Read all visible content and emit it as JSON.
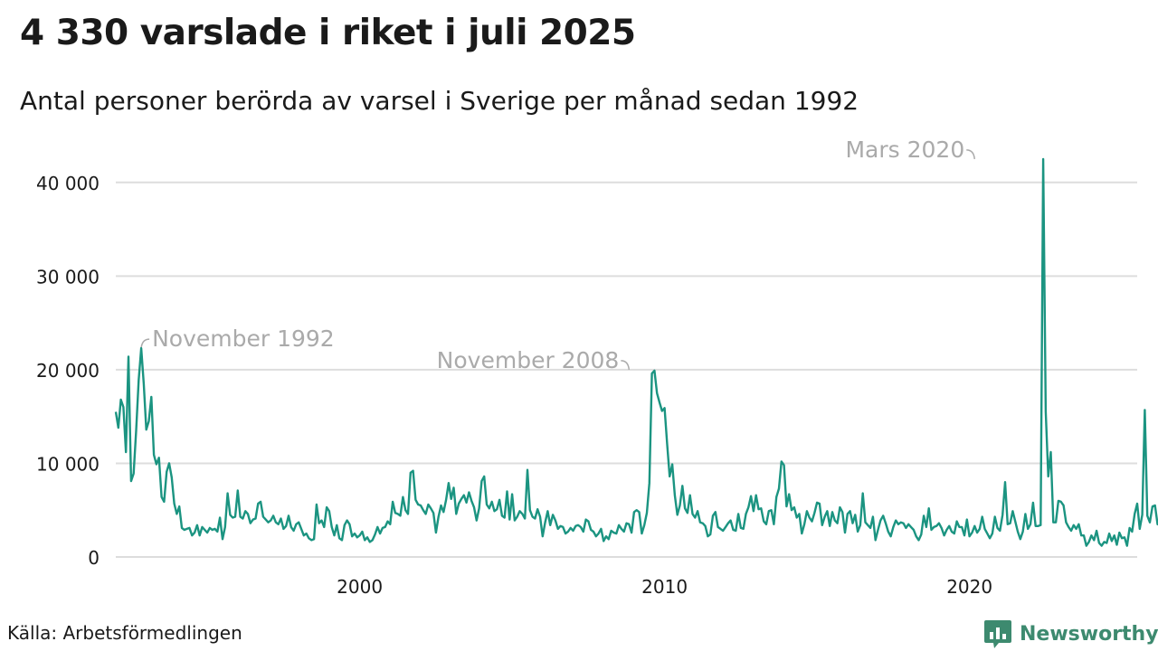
{
  "header": {
    "title": "4 330 varslade i riket i juli 2025",
    "subtitle": "Antal personer berörda av varsel i Sverige per månad sedan 1992"
  },
  "footer": {
    "source": "Källa: Arbetsförmedlingen",
    "brand": "Newsworthy"
  },
  "colors": {
    "line": "#1b9481",
    "grid": "#dddddd",
    "annotation": "#aaaaaa",
    "brand": "#3d8a6f"
  },
  "chart_data": {
    "type": "line",
    "title": "4 330 varslade i riket i juli 2025",
    "subtitle": "Antal personer berörda av varsel i Sverige per månad sedan 1992",
    "x_start": "1992-01",
    "x_end": "2025-07",
    "xlim": [
      "1992-01",
      "2025-07"
    ],
    "ylim": [
      0,
      45000
    ],
    "yticks": [
      {
        "value": 0,
        "label": "0"
      },
      {
        "value": 10000,
        "label": "10 000"
      },
      {
        "value": 20000,
        "label": "20 000"
      },
      {
        "value": 30000,
        "label": "30 000"
      },
      {
        "value": 40000,
        "label": "40 000"
      }
    ],
    "xticks": [
      {
        "value": "2000-01",
        "label": "2000"
      },
      {
        "value": "2010-01",
        "label": "2010"
      },
      {
        "value": "2020-01",
        "label": "2020"
      }
    ],
    "grid": true,
    "annotations": [
      {
        "label": "November 1992",
        "x": "1992-11",
        "y": 22300,
        "side": "right"
      },
      {
        "label": "November 2008",
        "x": "2008-11",
        "y": 20000,
        "side": "left"
      },
      {
        "label": "Mars 2020",
        "x": "2020-03",
        "y": 42500,
        "side": "left"
      }
    ],
    "series": [
      {
        "values": [
          15500,
          13800,
          16800,
          16000,
          11200,
          21400,
          8100,
          8900,
          13500,
          18900,
          22300,
          18500,
          13600,
          14500,
          17100,
          10900,
          9900,
          10600,
          6400,
          5900,
          9100,
          10000,
          8500,
          5700,
          4600,
          5400,
          3100,
          2900,
          3000,
          3100,
          2300,
          2600,
          3400,
          2300,
          3200,
          2900,
          2600,
          3100,
          2900,
          3000,
          2700,
          4200,
          1900,
          3200,
          6800,
          4500,
          4200,
          4300,
          7100,
          4300,
          4100,
          4900,
          4600,
          3600,
          4000,
          4100,
          5700,
          5900,
          4300,
          4000,
          3700,
          3900,
          4400,
          3700,
          3500,
          4100,
          3000,
          3300,
          4400,
          3200,
          2800,
          3500,
          3700,
          3000,
          2300,
          2500,
          2000,
          1800,
          1900,
          5600,
          3600,
          3900,
          3200,
          5300,
          4900,
          3200,
          2300,
          3400,
          2000,
          1800,
          3400,
          3900,
          3500,
          2200,
          2500,
          2100,
          2300,
          2700,
          1800,
          2100,
          1600,
          1800,
          2400,
          3200,
          2500,
          3100,
          3200,
          3800,
          3500,
          5900,
          4700,
          4600,
          4400,
          6400,
          5000,
          4600,
          9000,
          9200,
          6100,
          5600,
          5500,
          5000,
          4600,
          5600,
          5200,
          4700,
          2600,
          4300,
          5500,
          4800,
          6100,
          7900,
          6200,
          7400,
          4600,
          5700,
          6200,
          6600,
          5800,
          6900,
          6000,
          5300,
          3900,
          5200,
          8100,
          8600,
          5600,
          5200,
          5900,
          4900,
          5100,
          6100,
          4400,
          4200,
          7000,
          4000,
          6700,
          3900,
          4300,
          4900,
          4600,
          4100,
          9300,
          5000,
          4300,
          4100,
          5100,
          4300,
          2200,
          3700,
          4900,
          3400,
          4500,
          3900,
          3000,
          3300,
          3200,
          2500,
          2700,
          3100,
          2800,
          3300,
          3400,
          3200,
          2700,
          4000,
          3800,
          2900,
          2700,
          2200,
          2500,
          3000,
          1700,
          2200,
          1900,
          2800,
          2600,
          2500,
          3400,
          3000,
          2700,
          3600,
          3500,
          2600,
          4800,
          5000,
          4800,
          2500,
          3400,
          4700,
          7900,
          19600,
          19900,
          17500,
          16500,
          15600,
          15900,
          12100,
          8600,
          9900,
          6600,
          4500,
          5500,
          7600,
          5200,
          4700,
          6600,
          4600,
          4200,
          4900,
          3700,
          3600,
          3300,
          2200,
          2400,
          4400,
          4800,
          3200,
          3000,
          2800,
          3200,
          3600,
          3900,
          2900,
          2800,
          4600,
          3100,
          3000,
          4600,
          5300,
          6500,
          4900,
          6600,
          5100,
          5200,
          3800,
          3500,
          4900,
          5000,
          3500,
          6400,
          7300,
          10200,
          9800,
          5400,
          6700,
          5000,
          5300,
          4200,
          4600,
          2500,
          3500,
          4900,
          4200,
          3800,
          4700,
          5800,
          5700,
          3400,
          4300,
          4900,
          3300,
          4800,
          3900,
          3600,
          5300,
          4800,
          2600,
          4600,
          4900,
          3600,
          4500,
          2700,
          3400,
          6800,
          3700,
          3400,
          3100,
          4300,
          1800,
          2900,
          3900,
          4400,
          3600,
          2700,
          2200,
          3200,
          3900,
          3500,
          3700,
          3600,
          3100,
          3500,
          3200,
          2900,
          2200,
          1800,
          2400,
          4400,
          3200,
          5200,
          2900,
          3200,
          3300,
          3600,
          3100,
          2300,
          2900,
          3300,
          2700,
          2500,
          3800,
          3200,
          3200,
          2300,
          4000,
          2200,
          2600,
          3300,
          2600,
          3000,
          4300,
          3000,
          2500,
          2000,
          2500,
          4300,
          3100,
          2800,
          4500,
          8000,
          3500,
          3600,
          4900,
          3800,
          2700,
          1900,
          2700,
          4600,
          3000,
          3500,
          5800,
          3300,
          3300,
          3400,
          42500,
          15500,
          8600,
          11200,
          3700,
          3700,
          6000,
          5900,
          5500,
          3700,
          3200,
          2800,
          3400,
          3000,
          3500,
          2300,
          2300,
          1200,
          1600,
          2300,
          1800,
          2800,
          1500,
          1200,
          1600,
          1500,
          2500,
          1700,
          2300,
          1300,
          2600,
          2000,
          2100,
          1200,
          3100,
          2700,
          4600,
          5700,
          3000,
          4500,
          15700,
          4400,
          3700,
          5400,
          5500,
          3500,
          3400,
          6400,
          6400,
          7500,
          4800,
          5600,
          5900,
          6500,
          6900,
          8400,
          5400,
          5700,
          4600,
          5300,
          7700,
          5700,
          5900,
          4300,
          5300,
          5100,
          5500,
          5200,
          5600,
          10600,
          4700,
          4330
        ]
      }
    ]
  }
}
